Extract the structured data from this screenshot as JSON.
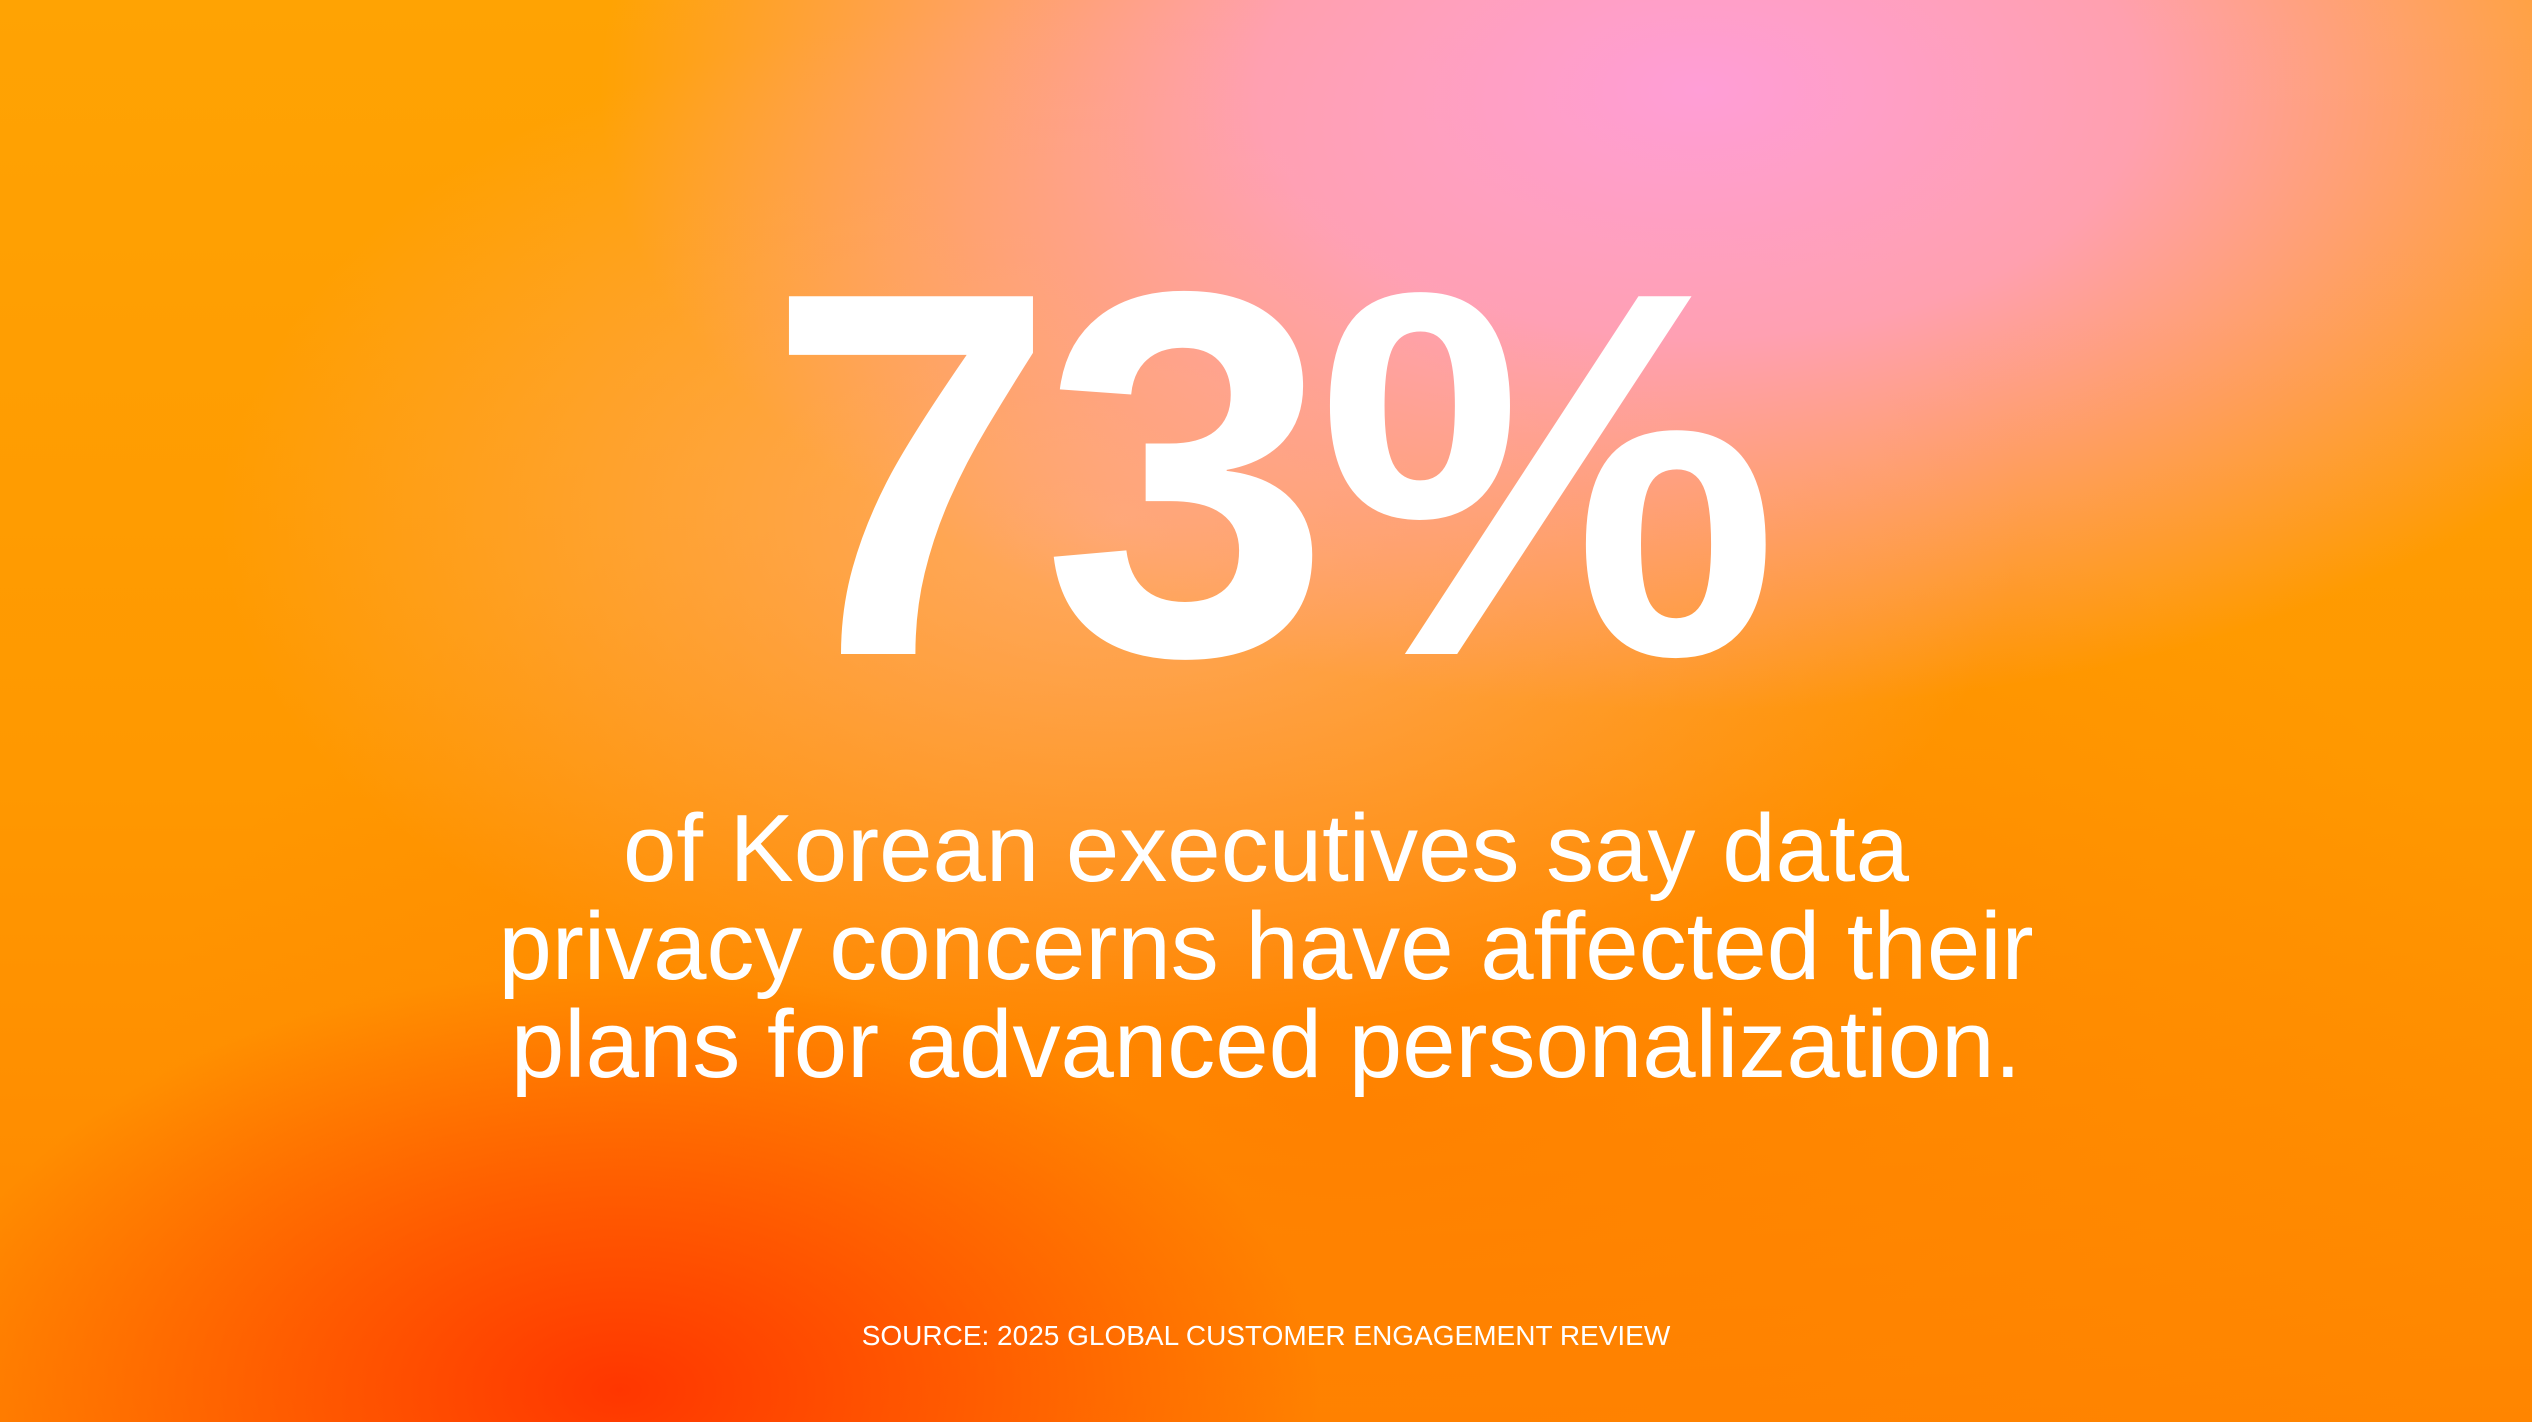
{
  "stat": {
    "value": "73%"
  },
  "caption": {
    "lines": [
      "of Korean executives say data",
      "privacy concerns have affected their",
      "plans for advanced personalization."
    ]
  },
  "source": {
    "text": "SOURCE: 2025 GLOBAL CUSTOMER ENGAGEMENT REVIEW"
  },
  "colors": {
    "text": "#ffffff",
    "background_orange": "#ff9a05",
    "background_pink": "#ff9ed6",
    "background_red": "#ff3200"
  }
}
